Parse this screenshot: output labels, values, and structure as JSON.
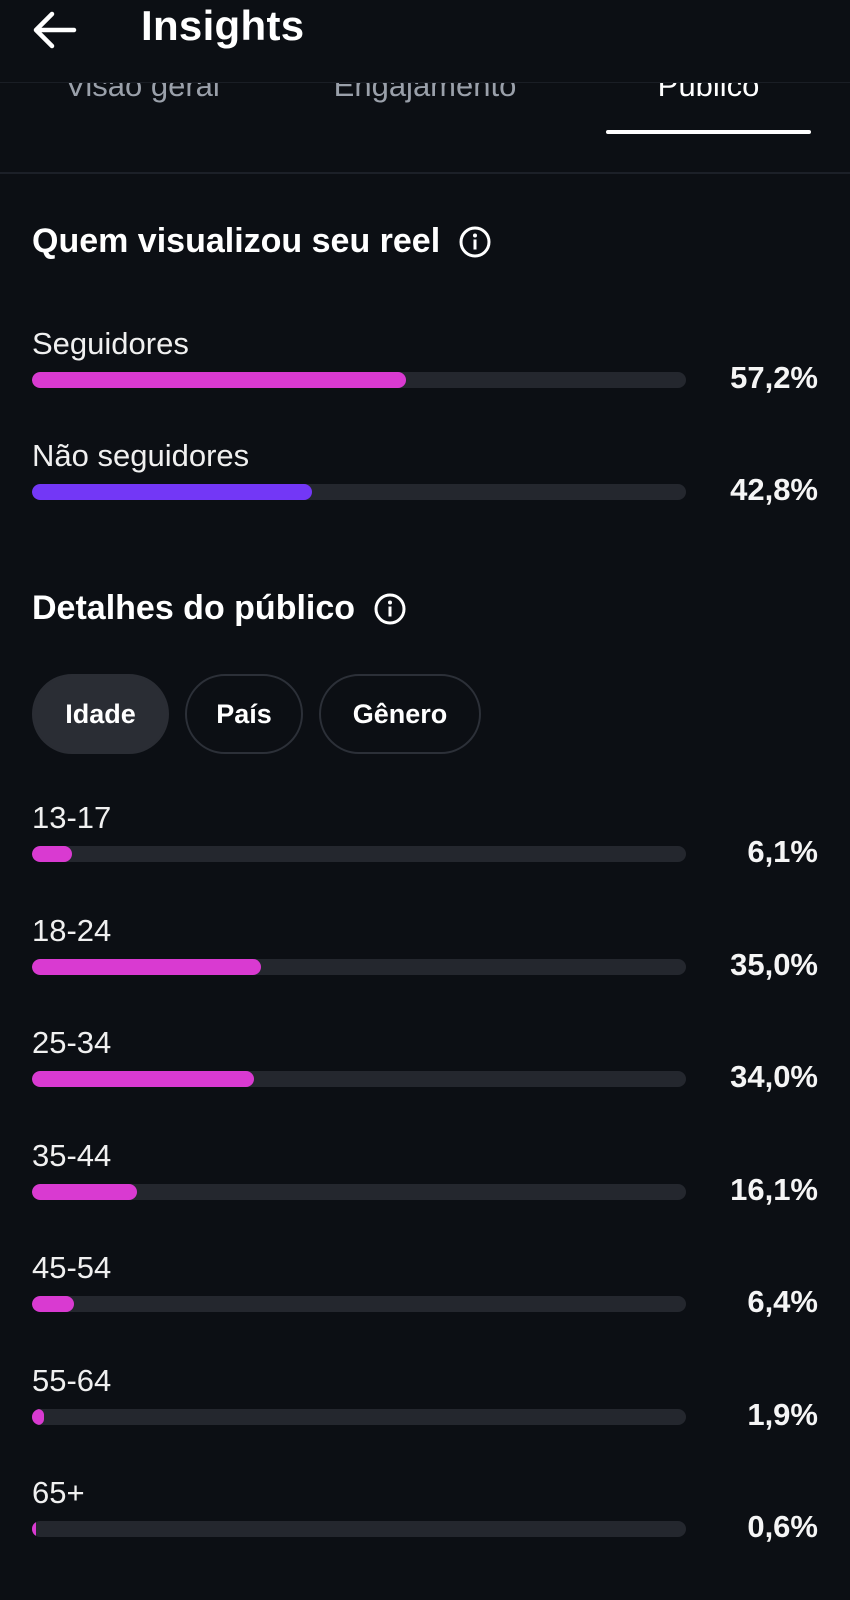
{
  "header": {
    "title": "Insights",
    "back_icon": "arrow-left-icon"
  },
  "tabs": [
    {
      "label": "Visão geral",
      "active": false
    },
    {
      "label": "Engajamento",
      "active": false
    },
    {
      "label": "Público",
      "active": true
    }
  ],
  "viewers": {
    "title": "Quem visualizou seu reel",
    "info_icon": "info-icon",
    "rows": [
      {
        "label": "Seguidores",
        "percent_text": "57,2%",
        "value": 57.2,
        "color": "#d93ad1"
      },
      {
        "label": "Não seguidores",
        "percent_text": "42,8%",
        "value": 42.8,
        "color": "#7337f6"
      }
    ]
  },
  "audience": {
    "title": "Detalhes do público",
    "info_icon": "info-icon",
    "filters": [
      {
        "label": "Idade",
        "selected": true
      },
      {
        "label": "País",
        "selected": false
      },
      {
        "label": "Gênero",
        "selected": false
      }
    ],
    "age_rows": [
      {
        "label": "13-17",
        "percent_text": "6,1%",
        "value": 6.1
      },
      {
        "label": "18-24",
        "percent_text": "35,0%",
        "value": 35.0
      },
      {
        "label": "25-34",
        "percent_text": "34,0%",
        "value": 34.0
      },
      {
        "label": "35-44",
        "percent_text": "16,1%",
        "value": 16.1
      },
      {
        "label": "45-54",
        "percent_text": "6,4%",
        "value": 6.4
      },
      {
        "label": "55-64",
        "percent_text": "1,9%",
        "value": 1.9
      },
      {
        "label": "65+",
        "percent_text": "0,6%",
        "value": 0.6
      }
    ],
    "bar_color": "#d93ad1"
  },
  "colors": {
    "background": "#0c0f14",
    "track": "#24272e",
    "accent_pink": "#d93ad1",
    "accent_purple": "#7337f6"
  }
}
